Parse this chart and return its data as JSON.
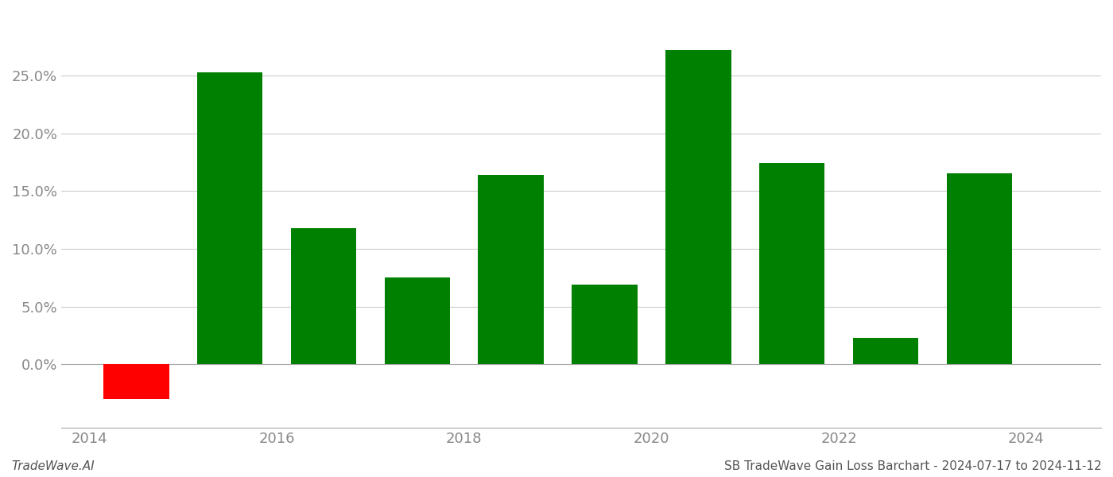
{
  "years": [
    2014,
    2015,
    2016,
    2017,
    2018,
    2019,
    2020,
    2021,
    2022,
    2023
  ],
  "bar_positions": [
    2014.5,
    2015.5,
    2016.5,
    2017.5,
    2018.5,
    2019.5,
    2020.5,
    2021.5,
    2022.5,
    2023.5
  ],
  "values": [
    -0.03,
    0.253,
    0.118,
    0.075,
    0.164,
    0.069,
    0.272,
    0.174,
    0.023,
    0.165
  ],
  "colors": [
    "#ff0000",
    "#008000",
    "#008000",
    "#008000",
    "#008000",
    "#008000",
    "#008000",
    "#008000",
    "#008000",
    "#008000"
  ],
  "ylim_min": -0.055,
  "ylim_max": 0.305,
  "yticks": [
    0.0,
    0.05,
    0.1,
    0.15,
    0.2,
    0.25
  ],
  "xticks": [
    2014,
    2016,
    2018,
    2020,
    2022,
    2024
  ],
  "xlim_min": 2013.7,
  "xlim_max": 2024.8,
  "footer_left": "TradeWave.AI",
  "footer_right": "SB TradeWave Gain Loss Barchart - 2024-07-17 to 2024-11-12",
  "background_color": "#ffffff",
  "bar_width": 0.7,
  "grid_color": "#cccccc",
  "axis_color": "#aaaaaa",
  "tick_label_color": "#888888",
  "tick_label_fontsize": 13,
  "footer_fontsize": 11
}
